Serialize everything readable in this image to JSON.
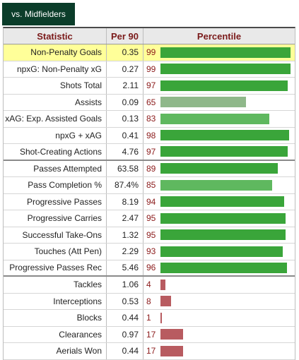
{
  "tab": {
    "label": "vs. Midfielders"
  },
  "table": {
    "headers": {
      "statistic": "Statistic",
      "per90": "Per 90",
      "percentile": "Percentile"
    },
    "colors": {
      "high": "#3aa53a",
      "mid": "#5fb85f",
      "low": "#8fb88a",
      "poor": "#b85b60"
    },
    "groups": [
      {
        "rows": [
          {
            "stat": "Non-Penalty Goals",
            "per90": "0.35",
            "pct": "99",
            "highlight": true
          },
          {
            "stat": "npxG: Non-Penalty xG",
            "per90": "0.27",
            "pct": "99"
          },
          {
            "stat": "Shots Total",
            "per90": "2.11",
            "pct": "97"
          },
          {
            "stat": "Assists",
            "per90": "0.09",
            "pct": "65"
          },
          {
            "stat": "xAG: Exp. Assisted Goals",
            "per90": "0.13",
            "pct": "83"
          },
          {
            "stat": "npxG + xAG",
            "per90": "0.41",
            "pct": "98"
          },
          {
            "stat": "Shot-Creating Actions",
            "per90": "4.76",
            "pct": "97"
          }
        ]
      },
      {
        "rows": [
          {
            "stat": "Passes Attempted",
            "per90": "63.58",
            "pct": "89"
          },
          {
            "stat": "Pass Completion %",
            "per90": "87.4%",
            "pct": "85"
          },
          {
            "stat": "Progressive Passes",
            "per90": "8.19",
            "pct": "94"
          },
          {
            "stat": "Progressive Carries",
            "per90": "2.47",
            "pct": "95"
          },
          {
            "stat": "Successful Take-Ons",
            "per90": "1.32",
            "pct": "95"
          },
          {
            "stat": "Touches (Att Pen)",
            "per90": "2.29",
            "pct": "93"
          },
          {
            "stat": "Progressive Passes Rec",
            "per90": "5.46",
            "pct": "96"
          }
        ]
      },
      {
        "rows": [
          {
            "stat": "Tackles",
            "per90": "1.06",
            "pct": "4"
          },
          {
            "stat": "Interceptions",
            "per90": "0.53",
            "pct": "8"
          },
          {
            "stat": "Blocks",
            "per90": "0.44",
            "pct": "1"
          },
          {
            "stat": "Clearances",
            "per90": "0.97",
            "pct": "17"
          },
          {
            "stat": "Aerials Won",
            "per90": "0.44",
            "pct": "17"
          }
        ]
      }
    ]
  }
}
